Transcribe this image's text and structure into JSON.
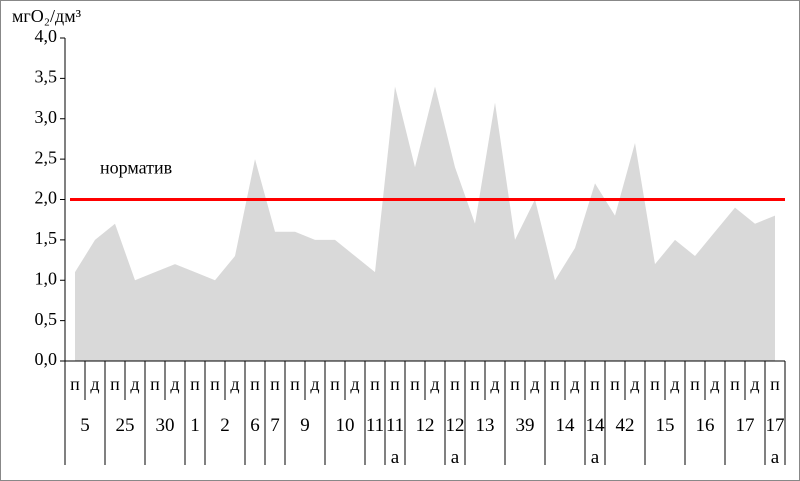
{
  "chart_data": {
    "type": "area",
    "y_label": "мгO₂/дм³",
    "ylim": [
      0,
      4
    ],
    "yticks": [
      {
        "value": 0,
        "label": "0,0"
      },
      {
        "value": 0.5,
        "label": "0,5"
      },
      {
        "value": 1,
        "label": "1,0"
      },
      {
        "value": 1.5,
        "label": "1,5"
      },
      {
        "value": 2,
        "label": "2,0"
      },
      {
        "value": 2.5,
        "label": "2,5"
      },
      {
        "value": 3,
        "label": "3,0"
      },
      {
        "value": 3.5,
        "label": "3,5"
      },
      {
        "value": 4,
        "label": "4,0"
      }
    ],
    "categories": [
      "п",
      "д",
      "п",
      "д",
      "п",
      "д",
      "п",
      "п",
      "д",
      "п",
      "п",
      "п",
      "д",
      "п",
      "д",
      "п",
      "п",
      "п",
      "д",
      "п",
      "п",
      "д",
      "п",
      "д",
      "п",
      "д",
      "п",
      "п",
      "д",
      "п",
      "д",
      "п",
      "д",
      "п",
      "д",
      "п"
    ],
    "groups": [
      {
        "label": "5",
        "count": 2
      },
      {
        "label": "25",
        "count": 2
      },
      {
        "label": "30",
        "count": 2
      },
      {
        "label": "1",
        "count": 1
      },
      {
        "label": "2",
        "count": 2
      },
      {
        "label": "6",
        "count": 1
      },
      {
        "label": "7",
        "count": 1
      },
      {
        "label": "9",
        "count": 2
      },
      {
        "label": "10",
        "count": 2
      },
      {
        "label": "11",
        "count": 1
      },
      {
        "label": "11\nа",
        "count": 1
      },
      {
        "label": "12",
        "count": 2
      },
      {
        "label": "12\nа",
        "count": 1
      },
      {
        "label": "13",
        "count": 2
      },
      {
        "label": "39",
        "count": 2
      },
      {
        "label": "14",
        "count": 2
      },
      {
        "label": "14\nа",
        "count": 1
      },
      {
        "label": "42",
        "count": 2
      },
      {
        "label": "15",
        "count": 2
      },
      {
        "label": "16",
        "count": 2
      },
      {
        "label": "17",
        "count": 2
      },
      {
        "label": "17\nа",
        "count": 1
      }
    ],
    "values": [
      1.1,
      1.5,
      1.7,
      1.0,
      1.1,
      1.2,
      1.1,
      1.0,
      1.3,
      2.5,
      1.6,
      1.6,
      1.5,
      1.5,
      1.3,
      1.1,
      3.4,
      2.4,
      3.4,
      2.4,
      1.7,
      3.2,
      1.5,
      2.0,
      1.0,
      1.4,
      2.2,
      1.8,
      2.7,
      1.2,
      1.5,
      1.3,
      1.6,
      1.9,
      1.7,
      1.8
    ],
    "color": "#d9d9d9",
    "norm": {
      "label": "норматив",
      "value": 2.0,
      "color": "#ff0000"
    }
  }
}
